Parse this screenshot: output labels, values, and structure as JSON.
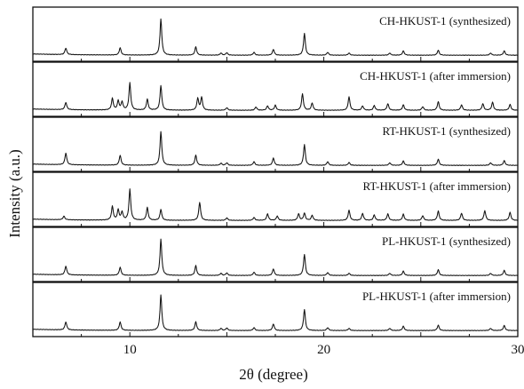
{
  "chart_data": {
    "type": "line",
    "layout": "stacked-panels",
    "xlabel": "2θ (degree)",
    "ylabel": "Intensity (a.u.)",
    "xlim": [
      5,
      30
    ],
    "x_ticks": [
      10,
      20,
      30
    ],
    "x_tick_labels": [
      "10",
      "20",
      "30"
    ],
    "grid": false,
    "series": [
      {
        "name": "CH-HKUST-1 (synthesized)",
        "peaks": [
          [
            6.7,
            0.18
          ],
          [
            9.5,
            0.2
          ],
          [
            11.6,
            1.0
          ],
          [
            13.4,
            0.23
          ],
          [
            14.7,
            0.06
          ],
          [
            15.0,
            0.07
          ],
          [
            16.4,
            0.08
          ],
          [
            17.4,
            0.16
          ],
          [
            19.0,
            0.6
          ],
          [
            20.2,
            0.08
          ],
          [
            21.3,
            0.06
          ],
          [
            23.4,
            0.06
          ],
          [
            24.1,
            0.12
          ],
          [
            25.9,
            0.14
          ],
          [
            28.6,
            0.06
          ],
          [
            29.3,
            0.12
          ]
        ]
      },
      {
        "name": "CH-HKUST-1 (after immersion)",
        "peaks": [
          [
            6.7,
            0.2
          ],
          [
            9.1,
            0.32
          ],
          [
            9.4,
            0.25
          ],
          [
            9.6,
            0.22
          ],
          [
            10.0,
            0.75
          ],
          [
            10.9,
            0.3
          ],
          [
            11.6,
            0.68
          ],
          [
            13.5,
            0.32
          ],
          [
            13.7,
            0.35
          ],
          [
            15.0,
            0.07
          ],
          [
            16.5,
            0.09
          ],
          [
            17.1,
            0.12
          ],
          [
            17.5,
            0.14
          ],
          [
            18.9,
            0.45
          ],
          [
            19.4,
            0.2
          ],
          [
            21.3,
            0.37
          ],
          [
            22.0,
            0.12
          ],
          [
            22.6,
            0.13
          ],
          [
            23.3,
            0.18
          ],
          [
            24.1,
            0.15
          ],
          [
            25.1,
            0.1
          ],
          [
            25.9,
            0.24
          ],
          [
            27.1,
            0.15
          ],
          [
            28.2,
            0.18
          ],
          [
            28.7,
            0.22
          ],
          [
            29.6,
            0.16
          ]
        ]
      },
      {
        "name": "RT-HKUST-1 (synthesized)",
        "peaks": [
          [
            6.7,
            0.32
          ],
          [
            9.5,
            0.27
          ],
          [
            11.6,
            0.93
          ],
          [
            13.4,
            0.28
          ],
          [
            14.7,
            0.06
          ],
          [
            15.0,
            0.07
          ],
          [
            16.4,
            0.1
          ],
          [
            17.4,
            0.2
          ],
          [
            19.0,
            0.57
          ],
          [
            20.2,
            0.1
          ],
          [
            21.3,
            0.08
          ],
          [
            23.4,
            0.07
          ],
          [
            24.1,
            0.12
          ],
          [
            25.9,
            0.17
          ],
          [
            28.6,
            0.07
          ],
          [
            29.3,
            0.13
          ]
        ]
      },
      {
        "name": "RT-HKUST-1 (after immersion)",
        "peaks": [
          [
            6.6,
            0.1
          ],
          [
            9.1,
            0.38
          ],
          [
            9.4,
            0.28
          ],
          [
            9.6,
            0.22
          ],
          [
            10.0,
            0.85
          ],
          [
            10.9,
            0.35
          ],
          [
            11.6,
            0.3
          ],
          [
            13.6,
            0.5
          ],
          [
            15.0,
            0.07
          ],
          [
            16.4,
            0.08
          ],
          [
            17.1,
            0.18
          ],
          [
            17.6,
            0.12
          ],
          [
            18.7,
            0.18
          ],
          [
            19.0,
            0.2
          ],
          [
            19.4,
            0.14
          ],
          [
            21.3,
            0.28
          ],
          [
            22.0,
            0.19
          ],
          [
            22.6,
            0.15
          ],
          [
            23.3,
            0.18
          ],
          [
            24.1,
            0.17
          ],
          [
            25.1,
            0.13
          ],
          [
            25.9,
            0.26
          ],
          [
            27.1,
            0.2
          ],
          [
            28.3,
            0.27
          ],
          [
            29.6,
            0.22
          ]
        ]
      },
      {
        "name": "PL-HKUST-1 (synthesized)",
        "peaks": [
          [
            6.7,
            0.24
          ],
          [
            9.5,
            0.22
          ],
          [
            11.6,
            1.0
          ],
          [
            13.4,
            0.27
          ],
          [
            14.7,
            0.06
          ],
          [
            15.0,
            0.07
          ],
          [
            16.4,
            0.09
          ],
          [
            17.4,
            0.18
          ],
          [
            19.0,
            0.58
          ],
          [
            20.2,
            0.08
          ],
          [
            21.3,
            0.06
          ],
          [
            23.4,
            0.06
          ],
          [
            24.1,
            0.12
          ],
          [
            25.9,
            0.16
          ],
          [
            28.6,
            0.06
          ],
          [
            29.3,
            0.14
          ]
        ]
      },
      {
        "name": "PL-HKUST-1 (after immersion)",
        "peaks": [
          [
            6.7,
            0.22
          ],
          [
            9.5,
            0.23
          ],
          [
            11.6,
            0.98
          ],
          [
            13.4,
            0.24
          ],
          [
            14.7,
            0.06
          ],
          [
            15.0,
            0.07
          ],
          [
            16.4,
            0.08
          ],
          [
            17.4,
            0.18
          ],
          [
            19.0,
            0.58
          ],
          [
            20.2,
            0.08
          ],
          [
            21.3,
            0.06
          ],
          [
            23.4,
            0.06
          ],
          [
            24.1,
            0.12
          ],
          [
            25.9,
            0.15
          ],
          [
            28.6,
            0.06
          ],
          [
            29.3,
            0.14
          ]
        ]
      }
    ]
  }
}
